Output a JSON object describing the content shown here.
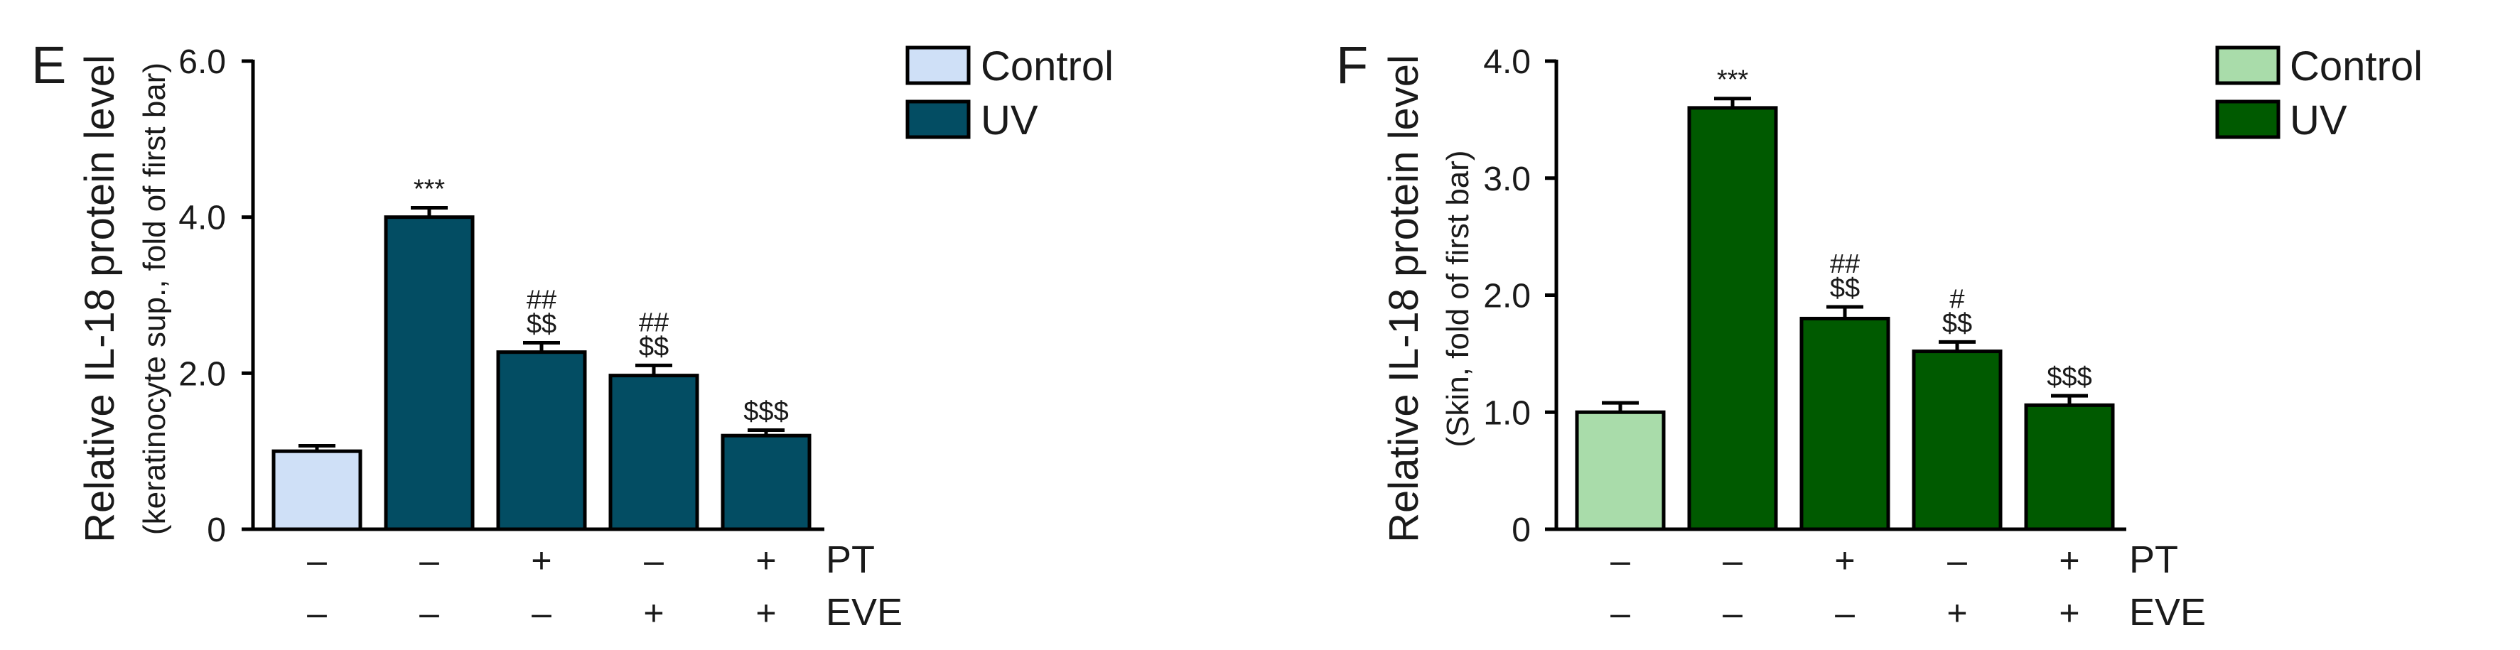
{
  "chart_data": [
    {
      "type": "bar",
      "panel_label": "E",
      "ylabel": "Relative IL-18 protein level",
      "ylabel_sub": "(keratinocyte sup., fold of first bar)",
      "ylim": [
        0,
        6.0
      ],
      "yticks": [
        0,
        2.0,
        4.0,
        6.0
      ],
      "ytick_labels": [
        "0",
        "2.0",
        "4.0",
        "6.0"
      ],
      "values": [
        1.0,
        4.0,
        2.27,
        1.97,
        1.2
      ],
      "errors": [
        0.07,
        0.12,
        0.12,
        0.13,
        0.07
      ],
      "groups": [
        "Control",
        "UV",
        "UV",
        "UV",
        "UV"
      ],
      "annotations": [
        [],
        [
          "***"
        ],
        [
          "##",
          "$$"
        ],
        [
          "##",
          "$$"
        ],
        [
          "$$$"
        ]
      ],
      "treatment_rows": [
        {
          "name": "PT",
          "values": [
            "–",
            "–",
            "+",
            "–",
            "+"
          ]
        },
        {
          "name": "EVE",
          "values": [
            "–",
            "–",
            "–",
            "+",
            "+"
          ]
        }
      ],
      "legend": [
        {
          "label": "Control",
          "color": "#cfe0f7"
        },
        {
          "label": "UV",
          "color": "#034d63"
        }
      ],
      "legend_position": "top-right",
      "grid": false
    },
    {
      "type": "bar",
      "panel_label": "F",
      "ylabel": "Relative IL-18 protein level",
      "ylabel_sub": "(Skin, fold of first bar)",
      "ylim": [
        0,
        4.0
      ],
      "yticks": [
        0,
        1.0,
        2.0,
        3.0,
        4.0
      ],
      "ytick_labels": [
        "0",
        "1.0",
        "2.0",
        "3.0",
        "4.0"
      ],
      "values": [
        1.0,
        3.6,
        1.8,
        1.52,
        1.06
      ],
      "errors": [
        0.08,
        0.08,
        0.1,
        0.08,
        0.08
      ],
      "groups": [
        "Control",
        "UV",
        "UV",
        "UV",
        "UV"
      ],
      "annotations": [
        [],
        [
          "***"
        ],
        [
          "##",
          "$$"
        ],
        [
          "#",
          "$$"
        ],
        [
          "$$$"
        ]
      ],
      "treatment_rows": [
        {
          "name": "PT",
          "values": [
            "–",
            "–",
            "+",
            "–",
            "+"
          ]
        },
        {
          "name": "EVE",
          "values": [
            "–",
            "–",
            "–",
            "+",
            "+"
          ]
        }
      ],
      "legend": [
        {
          "label": "Control",
          "color": "#a9dcaa"
        },
        {
          "label": "UV",
          "color": "#005a00"
        }
      ],
      "legend_position": "top-right",
      "grid": false
    }
  ]
}
